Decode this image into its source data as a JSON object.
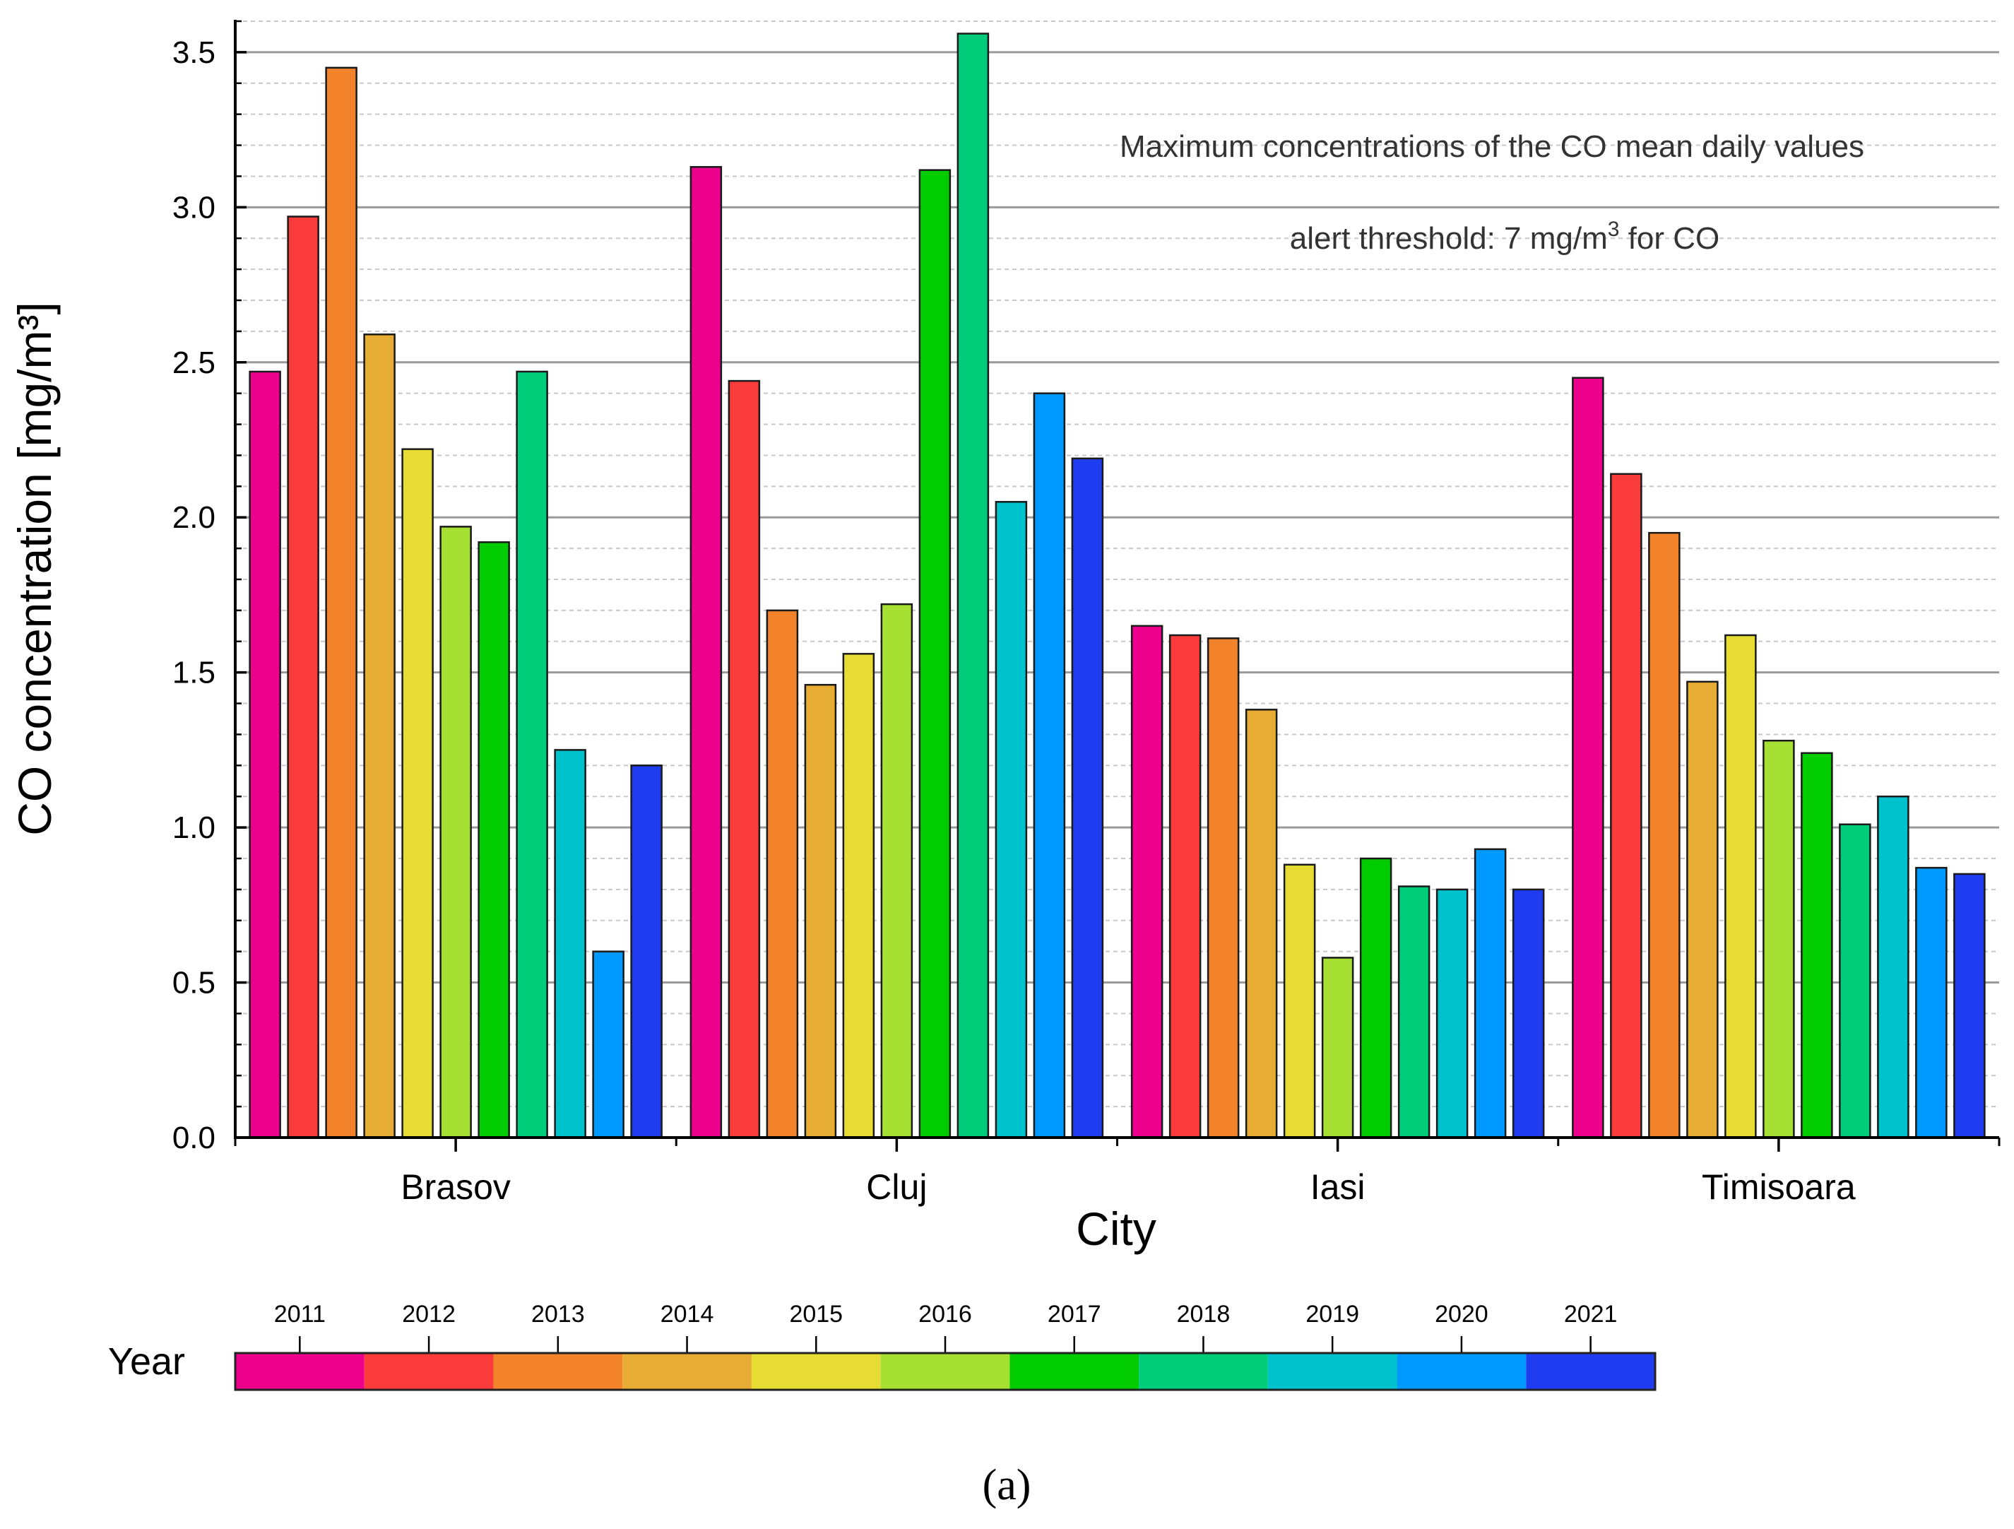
{
  "chart_data": {
    "type": "bar",
    "title": "",
    "annotations": [
      "Maximum concentrations of the CO mean daily values",
      "alert threshold: 7 mg/m3 for CO"
    ],
    "annotation_parts": {
      "threshold_prefix": "alert threshold: 7 mg/m",
      "threshold_sup": "3",
      "threshold_suffix": " for CO"
    },
    "xlabel": "City",
    "ylabel": "CO concentration [mg/m³]",
    "ylim": [
      0,
      3.6
    ],
    "yticks": [
      "0.0",
      "0.5",
      "1.0",
      "1.5",
      "2.0",
      "2.5",
      "3.0",
      "3.5"
    ],
    "ytick_values": [
      0,
      0.5,
      1.0,
      1.5,
      2.0,
      2.5,
      3.0,
      3.5
    ],
    "grid": true,
    "categories": [
      "Brasov",
      "Cluj",
      "Iasi",
      "Timisoara"
    ],
    "legend_title": "Year",
    "legend_position": "bottom",
    "caption": "(a)",
    "series": [
      {
        "name": "2011",
        "color": "#ec008c",
        "values": [
          2.47,
          3.13,
          1.65,
          2.45
        ]
      },
      {
        "name": "2012",
        "color": "#f93b3b",
        "values": [
          2.97,
          2.44,
          1.62,
          2.14
        ]
      },
      {
        "name": "2013",
        "color": "#f2832b",
        "values": [
          3.45,
          1.7,
          1.61,
          1.95
        ]
      },
      {
        "name": "2014",
        "color": "#e6ac33",
        "values": [
          2.59,
          1.46,
          1.38,
          1.47
        ]
      },
      {
        "name": "2015",
        "color": "#e6dc33",
        "values": [
          2.22,
          1.56,
          0.88,
          1.62
        ]
      },
      {
        "name": "2016",
        "color": "#a6e033",
        "values": [
          1.97,
          1.72,
          0.58,
          1.28
        ]
      },
      {
        "name": "2017",
        "color": "#00cc00",
        "values": [
          1.92,
          3.12,
          0.9,
          1.24
        ]
      },
      {
        "name": "2018",
        "color": "#00cc7a",
        "values": [
          2.47,
          3.56,
          0.81,
          1.01
        ]
      },
      {
        "name": "2019",
        "color": "#00c2cc",
        "values": [
          1.25,
          2.05,
          0.8,
          1.1
        ]
      },
      {
        "name": "2020",
        "color": "#0099ff",
        "values": [
          0.6,
          2.4,
          0.93,
          0.87
        ]
      },
      {
        "name": "2021",
        "color": "#1f3cf0",
        "values": [
          1.2,
          2.19,
          0.8,
          0.85
        ]
      }
    ]
  }
}
